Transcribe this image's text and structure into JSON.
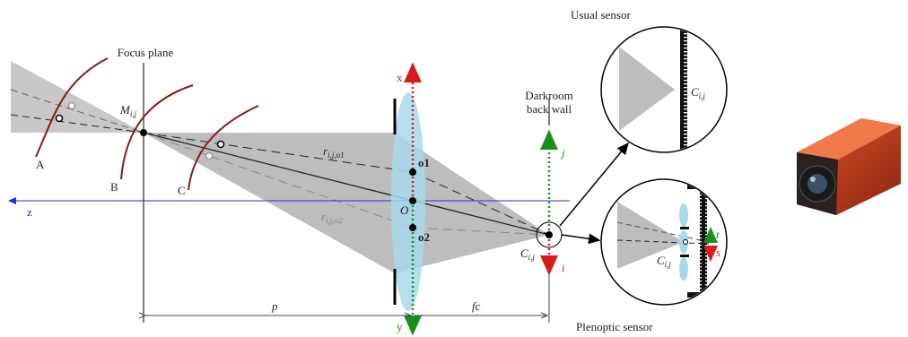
{
  "main_diagram": {
    "focus_plane": "Focus plane",
    "darkroom_wall": [
      "Darkroom",
      "back wall"
    ],
    "axis_x": "x",
    "axis_y": "y",
    "axis_z": "z",
    "axis_i": "i",
    "axis_j": "j",
    "curves": [
      "A",
      "B",
      "C"
    ],
    "point_m": {
      "base": "M",
      "sub": "i,j"
    },
    "point_c": {
      "base": "C",
      "sub": "i,j"
    },
    "ray_o1": {
      "base": "r",
      "sub": "i,j,o1"
    },
    "ray_o2": {
      "base": "r",
      "sub": "i,j,o2"
    },
    "lens_points": [
      "o1",
      "O",
      "o2"
    ],
    "distance_p": "p",
    "distance_fc": "fc"
  },
  "usual_sensor": {
    "title": "Usual sensor",
    "point": {
      "base": "C",
      "sub": "i,j"
    }
  },
  "plenoptic_sensor": {
    "title": "Plenoptic sensor",
    "point": {
      "base": "C",
      "sub": "i,j"
    },
    "axis_t": "t",
    "axis_s": "s"
  }
}
